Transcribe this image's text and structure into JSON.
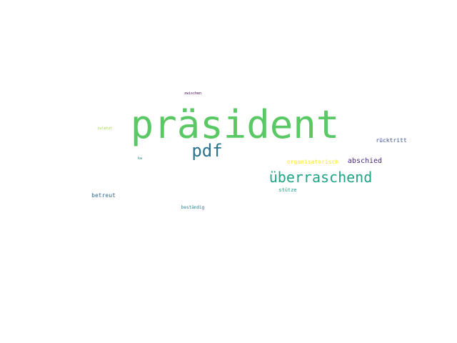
{
  "words": {
    "prasident": {
      "text": "präsident",
      "color": "#5ac864"
    },
    "pdf": {
      "text": "pdf",
      "color": "#2c728e"
    },
    "uberraschend": {
      "text": "überraschend",
      "color": "#20a486"
    },
    "abschied": {
      "text": "abschied",
      "color": "#482878"
    },
    "organisatorisch": {
      "text": "organisatorisch",
      "color": "#fde725"
    },
    "rucktritt": {
      "text": "rücktritt",
      "color": "#3b528b"
    },
    "betreut": {
      "text": "betreut",
      "color": "#31688e"
    },
    "stutze": {
      "text": "stütze",
      "color": "#1f9e89"
    },
    "bestandig": {
      "text": "beständig",
      "color": "#26828e"
    },
    "zuletzt": {
      "text": "zuletzt",
      "color": "#a0da39"
    },
    "zwischen": {
      "text": "zwischen",
      "color": "#440154"
    },
    "kw": {
      "text": "kw",
      "color": "#21918c"
    }
  }
}
